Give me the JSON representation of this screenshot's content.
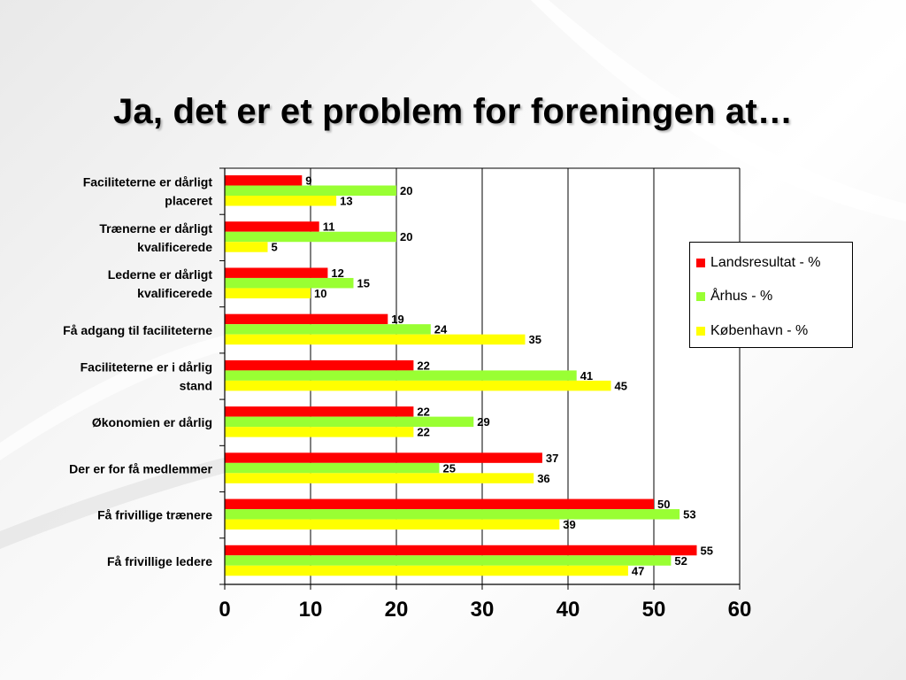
{
  "slide": {
    "title": "Ja, det er et problem for foreningen at…"
  },
  "colors": {
    "landsresultat": "#ff0000",
    "aarhus": "#99ff33",
    "koebenhavn": "#ffff00"
  },
  "legend": {
    "items": [
      "Landsresultat - %",
      "Århus - %",
      "København - %"
    ],
    "placement": "right"
  },
  "chart_data": {
    "type": "bar",
    "orientation": "horizontal",
    "categories": [
      [
        "Faciliteterne er dårligt",
        "placeret"
      ],
      [
        "Trænerne er dårligt",
        "kvalificerede"
      ],
      [
        "Lederne er dårligt",
        "kvalificerede"
      ],
      [
        "Få adgang til faciliteterne"
      ],
      [
        "Faciliteterne er i dårlig",
        "stand"
      ],
      [
        "Økonomien er dårlig"
      ],
      [
        "Der er for få medlemmer"
      ],
      [
        "Få frivillige trænere"
      ],
      [
        "Få frivillige ledere"
      ]
    ],
    "series": [
      {
        "name": "Landsresultat - %",
        "values": [
          9,
          11,
          12,
          19,
          22,
          22,
          37,
          50,
          55
        ]
      },
      {
        "name": "Århus - %",
        "values": [
          20,
          20,
          15,
          24,
          41,
          29,
          25,
          53,
          52
        ]
      },
      {
        "name": "København - %",
        "values": [
          13,
          5,
          10,
          35,
          45,
          22,
          36,
          39,
          47
        ]
      }
    ],
    "xlim": [
      0,
      60
    ],
    "xticks": [
      "0",
      "10",
      "20",
      "30",
      "40",
      "50",
      "60"
    ],
    "grid": "vertical major gridlines",
    "data_labels": true
  }
}
